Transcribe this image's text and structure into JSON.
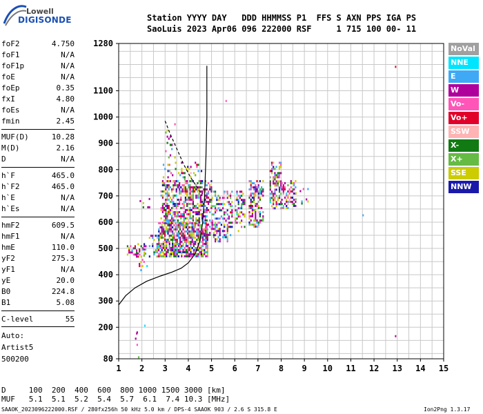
{
  "logo": {
    "line1": "Lowell",
    "line2": "DIGISONDE"
  },
  "header": {
    "row1": "Station YYYY DAY   DDD HHMMSS P1  FFS S AXN PPS IGA PS",
    "row2": "SaoLuis 2023 Apr06 096 222000 RSF     1 715 100 00- 11"
  },
  "params": [
    {
      "label": "foF2",
      "value": "4.750"
    },
    {
      "label": "foF1",
      "value": "N/A"
    },
    {
      "label": "foF1p",
      "value": "N/A"
    },
    {
      "label": "foE",
      "value": "N/A"
    },
    {
      "label": "foEp",
      "value": "0.35"
    },
    {
      "label": "fxI",
      "value": "4.80"
    },
    {
      "label": "foEs",
      "value": "N/A"
    },
    {
      "label": "fmin",
      "value": "2.45"
    },
    {
      "label": "MUF(D)",
      "value": "10.28"
    },
    {
      "label": "M(D)",
      "value": "2.16"
    },
    {
      "label": "D",
      "value": "N/A"
    },
    {
      "label": "h`F",
      "value": "465.0"
    },
    {
      "label": "h`F2",
      "value": "465.0"
    },
    {
      "label": "h`E",
      "value": "N/A"
    },
    {
      "label": "h`Es",
      "value": "N/A"
    },
    {
      "label": "hmF2",
      "value": "609.5"
    },
    {
      "label": "hmF1",
      "value": "N/A"
    },
    {
      "label": "hmE",
      "value": "110.0"
    },
    {
      "label": "yF2",
      "value": "275.3"
    },
    {
      "label": "yF1",
      "value": "N/A"
    },
    {
      "label": "yE",
      "value": "20.0"
    },
    {
      "label": "B0",
      "value": "224.8"
    },
    {
      "label": "B1",
      "value": "5.08"
    },
    {
      "label": "C-level",
      "value": "55"
    }
  ],
  "auto": {
    "label": "Auto:",
    "artist": "Artist5",
    "version": "500200"
  },
  "legend": [
    {
      "label": "NoVal",
      "color": "#a0a0a0"
    },
    {
      "label": "NNE",
      "color": "#00e5ff"
    },
    {
      "label": "E",
      "color": "#3fa9f5"
    },
    {
      "label": "W",
      "color": "#b0009c"
    },
    {
      "label": "Vo-",
      "color": "#ff55b8"
    },
    {
      "label": "Vo+",
      "color": "#e0002a"
    },
    {
      "label": "SSW",
      "color": "#ffb3b3"
    },
    {
      "label": "X-",
      "color": "#127a12"
    },
    {
      "label": "X+",
      "color": "#66bb44"
    },
    {
      "label": "SSE",
      "color": "#cccc00"
    },
    {
      "label": "NNW",
      "color": "#1a1aaa"
    }
  ],
  "footer": {
    "d_row": "D     100  200  400  600  800 1000 1500 3000 [km]",
    "muf_row": "MUF   5.1  5.1  5.2  5.4  5.7  6.1  7.4 10.3 [MHz]",
    "info": "SAAOK_2023096222000.RSF / 280fx256h 50 kHz 5.0 km / DPS-4 SAAOK 903 / 2.6 S 315.8 E",
    "version": "Ion2Png 1.3.17"
  },
  "chart_data": {
    "type": "scatter",
    "xlim": [
      1,
      15
    ],
    "ylim": [
      80,
      1280
    ],
    "x_ticks": [
      "1",
      "2",
      "3",
      "4",
      "5",
      "6",
      "7",
      "8",
      "9",
      "10",
      "11",
      "12",
      "13",
      "14",
      "15"
    ],
    "y_ticks": [
      "80",
      "200",
      "300",
      "400",
      "500",
      "600",
      "700",
      "800",
      "900",
      "1000",
      "1100",
      "1280"
    ],
    "grid": true,
    "x_grid_step": 0.5,
    "y_grid_step": 50,
    "profile_curve": [
      [
        1.0,
        285
      ],
      [
        1.3,
        320
      ],
      [
        1.7,
        350
      ],
      [
        2.2,
        375
      ],
      [
        2.8,
        395
      ],
      [
        3.3,
        410
      ],
      [
        3.7,
        425
      ],
      [
        4.0,
        445
      ],
      [
        4.3,
        480
      ],
      [
        4.5,
        530
      ],
      [
        4.62,
        600
      ],
      [
        4.7,
        700
      ],
      [
        4.76,
        850
      ],
      [
        4.8,
        1000
      ],
      [
        4.8,
        1195
      ]
    ],
    "dashed_curve": [
      [
        3.0,
        985
      ],
      [
        3.2,
        940
      ],
      [
        3.5,
        880
      ],
      [
        3.8,
        820
      ],
      [
        4.1,
        770
      ],
      [
        4.4,
        730
      ],
      [
        4.6,
        700
      ]
    ],
    "clusters": [
      {
        "x": [
          1.35,
          2.2
        ],
        "y": [
          470,
          520
        ],
        "density": 0.35
      },
      {
        "x": [
          1.8,
          2.2
        ],
        "y": [
          420,
          500
        ],
        "density": 0.3
      },
      {
        "x": [
          1.9,
          2.3
        ],
        "y": [
          640,
          700
        ],
        "density": 0.1
      },
      {
        "x": [
          2.3,
          2.7
        ],
        "y": [
          460,
          560
        ],
        "density": 0.35
      },
      {
        "x": [
          2.7,
          4.8
        ],
        "y": [
          470,
          600
        ],
        "density": 0.75
      },
      {
        "x": [
          2.8,
          4.7
        ],
        "y": [
          600,
          760
        ],
        "density": 0.55
      },
      {
        "x": [
          2.9,
          4.6
        ],
        "y": [
          760,
          830
        ],
        "density": 0.22
      },
      {
        "x": [
          3.0,
          3.4
        ],
        "y": [
          830,
          1000
        ],
        "density": 0.08
      },
      {
        "x": [
          4.7,
          5.0
        ],
        "y": [
          550,
          760
        ],
        "density": 0.4
      },
      {
        "x": [
          5.0,
          5.9
        ],
        "y": [
          530,
          720
        ],
        "density": 0.35
      },
      {
        "x": [
          6.0,
          6.4
        ],
        "y": [
          560,
          720
        ],
        "density": 0.35
      },
      {
        "x": [
          6.6,
          7.2
        ],
        "y": [
          580,
          760
        ],
        "density": 0.45
      },
      {
        "x": [
          7.5,
          8.0
        ],
        "y": [
          650,
          830
        ],
        "density": 0.45
      },
      {
        "x": [
          8.0,
          8.6
        ],
        "y": [
          650,
          760
        ],
        "density": 0.35
      },
      {
        "x": [
          8.6,
          9.2
        ],
        "y": [
          670,
          730
        ],
        "density": 0.15
      },
      {
        "x": [
          1.7,
          1.85
        ],
        "y": [
          80,
          200
        ],
        "density": 0.08
      }
    ],
    "isolated_points": [
      [
        11.5,
        630,
        "#3fa9f5"
      ],
      [
        12.9,
        1195,
        "#e0002a"
      ],
      [
        12.9,
        170,
        "#b0009c"
      ],
      [
        2.1,
        210,
        "#00e5ff"
      ],
      [
        1.75,
        180,
        "#b0009c"
      ],
      [
        5.6,
        1065,
        "#ff55b8"
      ]
    ]
  }
}
